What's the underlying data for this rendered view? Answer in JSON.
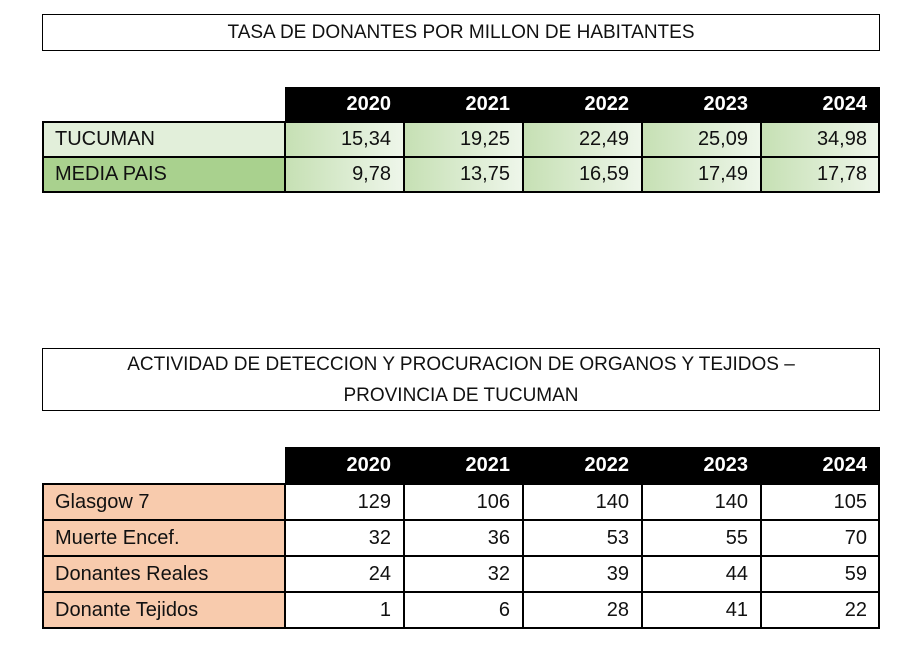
{
  "table1": {
    "title_lines": [
      "TASA DE DONANTES POR MILLON DE HABITANTES"
    ],
    "columns": [
      "2020",
      "2021",
      "2022",
      "2023",
      "2024"
    ],
    "rows": [
      {
        "label": "TUCUMAN",
        "values": [
          "15,34",
          "19,25",
          "22,49",
          "25,09",
          "34,98"
        ]
      },
      {
        "label": "MEDIA PAIS",
        "values": [
          "9,78",
          "13,75",
          "16,59",
          "17,49",
          "17,78"
        ]
      }
    ]
  },
  "table2": {
    "title_lines": [
      "ACTIVIDAD DE DETECCION Y PROCURACION DE ORGANOS Y TEJIDOS –",
      "PROVINCIA DE TUCUMAN"
    ],
    "columns": [
      "2020",
      "2021",
      "2022",
      "2023",
      "2024"
    ],
    "rows": [
      {
        "label": "Glasgow 7",
        "values": [
          129,
          106,
          140,
          140,
          105
        ]
      },
      {
        "label": "Muerte Encef.",
        "values": [
          32,
          36,
          53,
          55,
          70
        ]
      },
      {
        "label": "Donantes Reales",
        "values": [
          24,
          32,
          39,
          44,
          59
        ]
      },
      {
        "label": "Donante Tejidos",
        "values": [
          1,
          6,
          28,
          41,
          22
        ]
      }
    ]
  }
}
